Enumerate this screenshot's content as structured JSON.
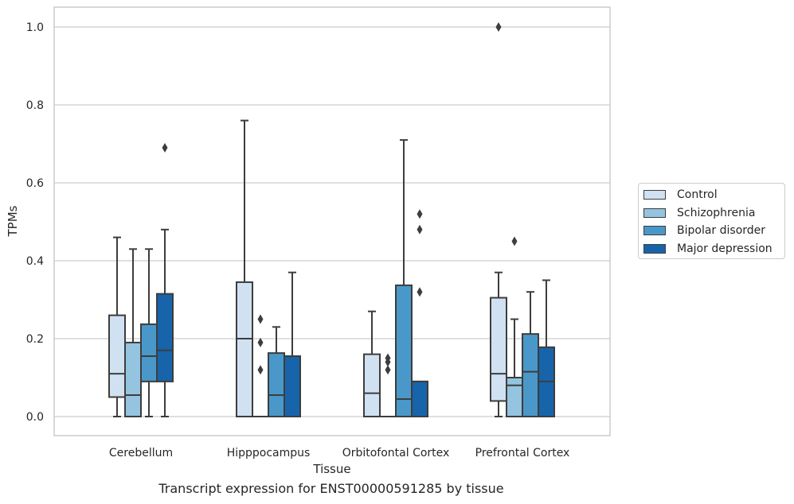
{
  "caption": "Transcript expression for ENST00000591285 by tissue",
  "chart_data": {
    "type": "box",
    "xlabel": "Tissue",
    "ylabel": "TPMs",
    "ylim": [
      -0.048,
      1.052
    ],
    "yticks": [
      "0.0",
      "0.2",
      "0.4",
      "0.6",
      "0.8",
      "1.0"
    ],
    "ytick_values": [
      0.0,
      0.2,
      0.4,
      0.6,
      0.8,
      1.0
    ],
    "grid": "horizontal",
    "legend_position": "right",
    "categories": [
      "Cerebellum",
      "Hipppocampus",
      "Orbitofontal Cortex",
      "Prefrontal Cortex"
    ],
    "series": [
      {
        "name": "Control",
        "color": "#d0e1f2",
        "boxes": [
          {
            "q1": 0.05,
            "median": 0.11,
            "q3": 0.26,
            "whislo": 0.0,
            "whishi": 0.46,
            "fliers": []
          },
          {
            "q1": 0.0,
            "median": 0.2,
            "q3": 0.345,
            "whislo": 0.0,
            "whishi": 0.76,
            "fliers": []
          },
          {
            "q1": 0.0,
            "median": 0.06,
            "q3": 0.16,
            "whislo": 0.0,
            "whishi": 0.27,
            "fliers": []
          },
          {
            "q1": 0.04,
            "median": 0.11,
            "q3": 0.305,
            "whislo": 0.0,
            "whishi": 0.37,
            "fliers": [
              1.0
            ]
          }
        ]
      },
      {
        "name": "Schizophrenia",
        "color": "#94c4df",
        "boxes": [
          {
            "q1": 0.0,
            "median": 0.055,
            "q3": 0.19,
            "whislo": 0.0,
            "whishi": 0.43,
            "fliers": []
          },
          {
            "q1": 0.0,
            "median": 0.0,
            "q3": 0.0,
            "whislo": 0.0,
            "whishi": 0.0,
            "fliers": [
              0.12,
              0.19,
              0.25
            ]
          },
          {
            "q1": 0.0,
            "median": 0.0,
            "q3": 0.0,
            "whislo": 0.0,
            "whishi": 0.0,
            "fliers": [
              0.12,
              0.14,
              0.15
            ]
          },
          {
            "q1": 0.0,
            "median": 0.08,
            "q3": 0.1,
            "whislo": 0.0,
            "whishi": 0.25,
            "fliers": [
              0.45
            ]
          }
        ]
      },
      {
        "name": "Bipolar disorder",
        "color": "#4a98c9",
        "boxes": [
          {
            "q1": 0.09,
            "median": 0.155,
            "q3": 0.237,
            "whislo": 0.0,
            "whishi": 0.43,
            "fliers": []
          },
          {
            "q1": 0.0,
            "median": 0.055,
            "q3": 0.163,
            "whislo": 0.0,
            "whishi": 0.23,
            "fliers": []
          },
          {
            "q1": 0.0,
            "median": 0.045,
            "q3": 0.337,
            "whislo": 0.0,
            "whishi": 0.71,
            "fliers": []
          },
          {
            "q1": 0.0,
            "median": 0.115,
            "q3": 0.212,
            "whislo": 0.0,
            "whishi": 0.32,
            "fliers": []
          }
        ]
      },
      {
        "name": "Major depression",
        "color": "#1764ab",
        "boxes": [
          {
            "q1": 0.09,
            "median": 0.17,
            "q3": 0.315,
            "whislo": 0.0,
            "whishi": 0.48,
            "fliers": [
              0.69
            ]
          },
          {
            "q1": 0.0,
            "median": 0.155,
            "q3": 0.155,
            "whislo": 0.0,
            "whishi": 0.37,
            "fliers": []
          },
          {
            "q1": 0.0,
            "median": 0.09,
            "q3": 0.09,
            "whislo": 0.0,
            "whishi": 0.09,
            "fliers": [
              0.32,
              0.48,
              0.52
            ]
          },
          {
            "q1": 0.0,
            "median": 0.09,
            "q3": 0.178,
            "whislo": 0.0,
            "whishi": 0.35,
            "fliers": []
          }
        ]
      }
    ]
  }
}
